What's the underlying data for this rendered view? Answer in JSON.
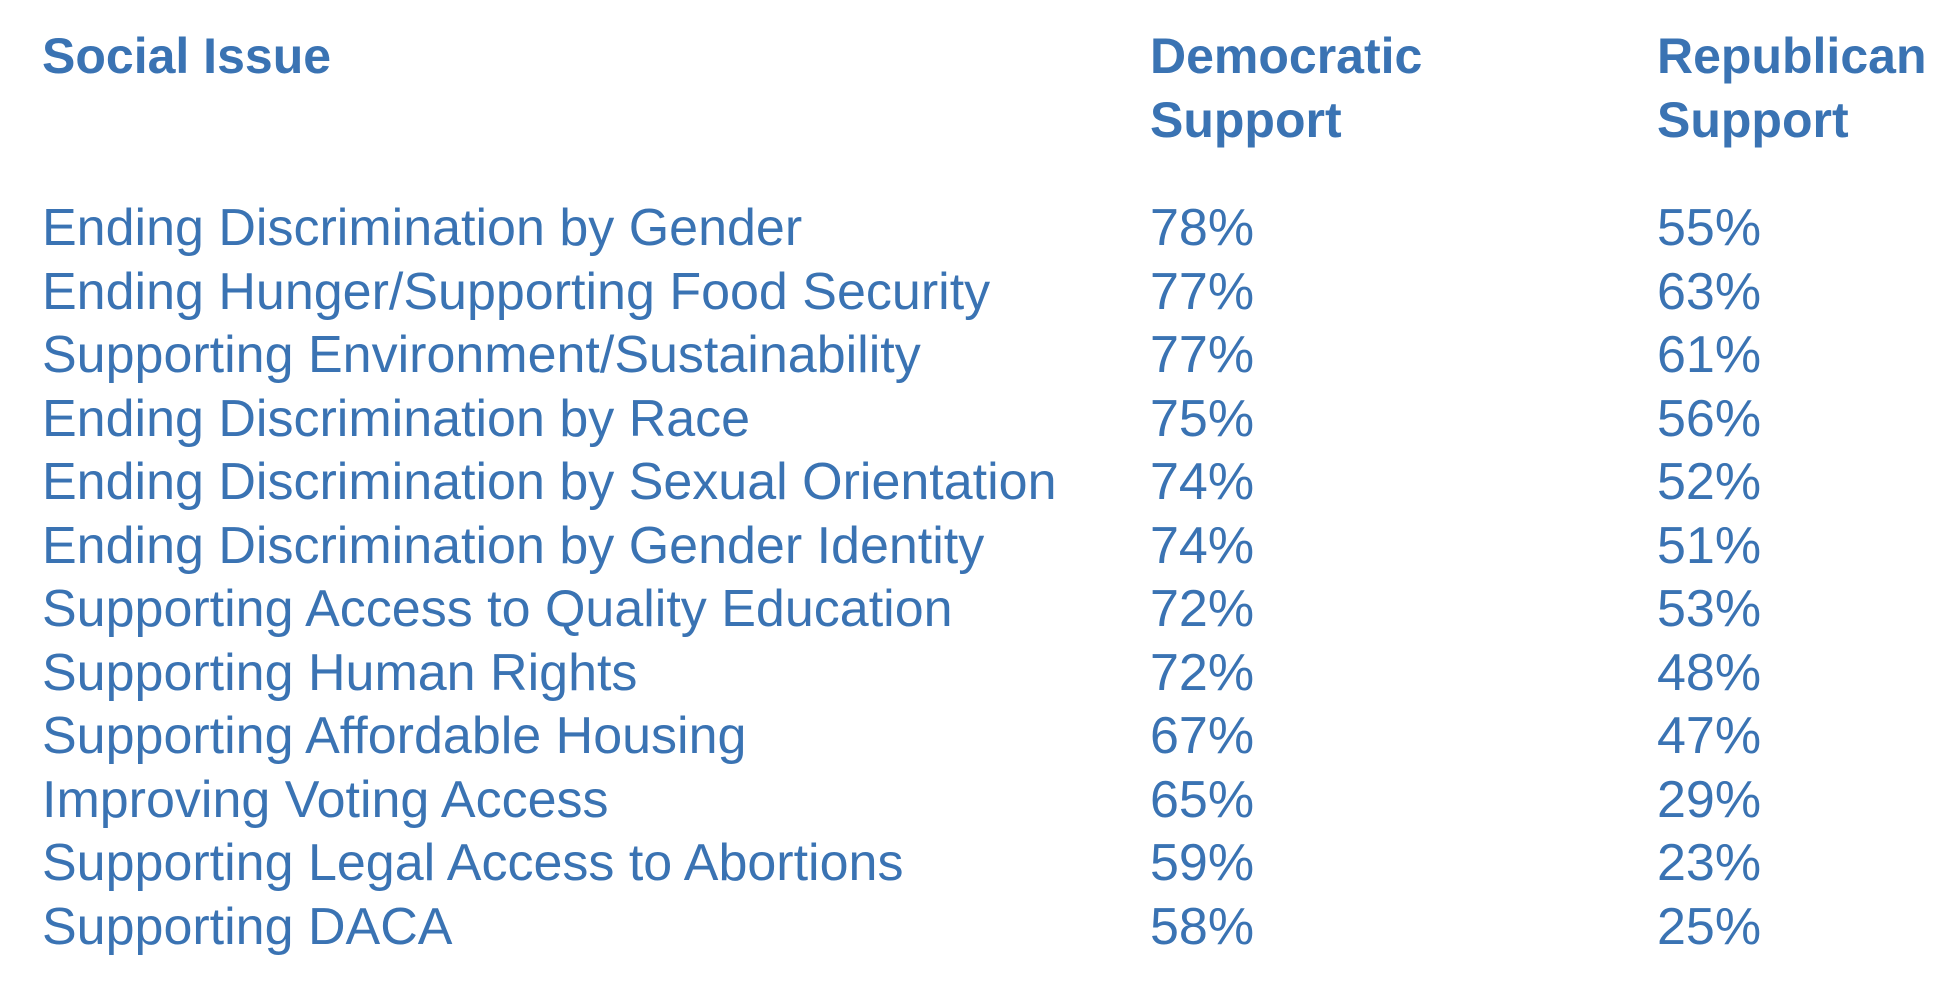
{
  "chart_data": {
    "type": "table",
    "columns": [
      "Social Issue",
      "Democratic Support",
      "Republican Support"
    ],
    "rows": [
      {
        "issue": "Ending Discrimination by Gender",
        "democratic": "78%",
        "republican": "55%"
      },
      {
        "issue": "Ending Hunger/Supporting Food Security",
        "democratic": "77%",
        "republican": "63%"
      },
      {
        "issue": "Supporting Environment/Sustainability",
        "democratic": "77%",
        "republican": "61%"
      },
      {
        "issue": "Ending Discrimination by Race",
        "democratic": "75%",
        "republican": "56%"
      },
      {
        "issue": "Ending Discrimination by Sexual Orientation",
        "democratic": "74%",
        "republican": "52%"
      },
      {
        "issue": "Ending Discrimination by Gender Identity",
        "democratic": "74%",
        "republican": "51%"
      },
      {
        "issue": "Supporting Access to Quality Education",
        "democratic": "72%",
        "republican": "53%"
      },
      {
        "issue": "Supporting Human Rights",
        "democratic": "72%",
        "republican": "48%"
      },
      {
        "issue": "Supporting Affordable Housing",
        "democratic": "67%",
        "republican": "47%"
      },
      {
        "issue": "Improving Voting Access",
        "democratic": "65%",
        "republican": "29%"
      },
      {
        "issue": "Supporting Legal Access to Abortions",
        "democratic": "59%",
        "republican": "23%"
      },
      {
        "issue": "Supporting DACA",
        "democratic": "58%",
        "republican": "25%"
      }
    ]
  },
  "header": {
    "issue": "Social Issue",
    "democratic_line1": "Democratic",
    "democratic_line2": "Support",
    "republican_line1": "Republican",
    "republican_line2": "Support"
  },
  "colors": {
    "text": "#3a73b3",
    "background": "#ffffff"
  }
}
